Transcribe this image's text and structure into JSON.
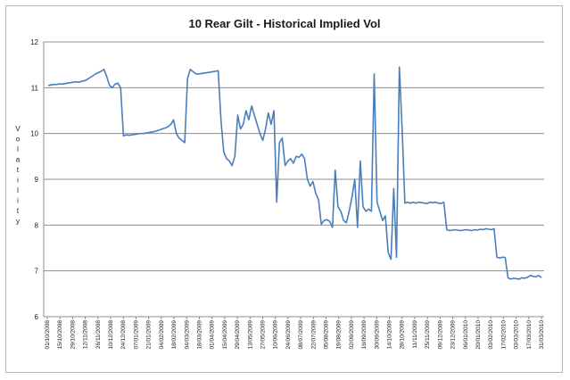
{
  "chart_data": {
    "type": "line",
    "title": "10 Rear Gilt - Historical Implied Vol",
    "xlabel": "",
    "ylabel": "Volatility",
    "ylim": [
      6,
      12
    ],
    "yticks": [
      6,
      7,
      8,
      9,
      10,
      11,
      12
    ],
    "grid": "horizontal",
    "legend": "none",
    "line_color": "#4a7ebb",
    "x_tick_labels": [
      "01/10/2008",
      "15/10/2008",
      "29/10/2008",
      "12/11/2008",
      "26/11/2008",
      "10/12/2008",
      "24/12/2008",
      "07/01/2009",
      "21/01/2009",
      "04/02/2009",
      "18/02/2009",
      "04/03/2009",
      "18/03/2009",
      "01/04/2009",
      "15/04/2009",
      "29/04/2009",
      "13/05/2009",
      "27/05/2009",
      "10/06/2009",
      "24/06/2009",
      "08/07/2009",
      "22/07/2009",
      "05/08/2009",
      "19/08/2009",
      "02/09/2009",
      "16/09/2009",
      "30/09/2009",
      "14/10/2009",
      "28/10/2009",
      "11/11/2009",
      "25/11/2009",
      "09/12/2009",
      "23/12/2009",
      "06/01/2010",
      "20/01/2010",
      "03/02/2010",
      "17/02/2010",
      "03/03/2010",
      "17/03/2010",
      "31/03/2010"
    ],
    "series": [
      {
        "values": [
          11.05,
          11.06,
          11.07,
          11.07,
          11.08,
          11.08,
          11.09,
          11.1,
          11.11,
          11.12,
          11.13,
          11.12,
          11.14,
          11.15,
          11.18,
          11.22,
          11.26,
          11.3,
          11.33,
          11.36,
          11.4,
          11.25,
          11.05,
          11.0,
          11.08,
          11.1,
          11.0,
          9.95,
          9.97,
          9.96,
          9.97,
          9.98,
          9.99,
          10.0,
          10.0,
          10.01,
          10.02,
          10.03,
          10.04,
          10.06,
          10.08,
          10.1,
          10.12,
          10.15,
          10.2,
          10.3,
          10.0,
          9.9,
          9.85,
          9.8,
          11.2,
          11.4,
          11.35,
          11.3,
          11.3,
          11.31,
          11.32,
          11.33,
          11.34,
          11.35,
          11.36,
          11.37,
          10.3,
          9.6,
          9.45,
          9.4,
          9.3,
          9.5,
          10.4,
          10.1,
          10.2,
          10.5,
          10.3,
          10.6,
          10.4,
          10.2,
          10.0,
          9.85,
          10.1,
          10.45,
          10.2,
          10.5,
          8.5,
          9.8,
          9.9,
          9.3,
          9.4,
          9.45,
          9.35,
          9.5,
          9.48,
          9.55,
          9.45,
          9.0,
          8.85,
          8.95,
          8.7,
          8.55,
          8.02,
          8.1,
          8.12,
          8.08,
          7.95,
          9.2,
          8.4,
          8.3,
          8.1,
          8.05,
          8.3,
          8.6,
          9.0,
          7.95,
          9.4,
          8.4,
          8.3,
          8.35,
          8.3,
          11.3,
          8.5,
          8.3,
          8.1,
          8.2,
          7.4,
          7.25,
          8.8,
          7.3,
          11.45,
          10.1,
          8.48,
          8.5,
          8.48,
          8.5,
          8.48,
          8.5,
          8.49,
          8.48,
          8.47,
          8.5,
          8.49,
          8.5,
          8.48,
          8.47,
          8.5,
          7.9,
          7.88,
          7.89,
          7.9,
          7.89,
          7.88,
          7.89,
          7.9,
          7.89,
          7.88,
          7.9,
          7.89,
          7.91,
          7.9,
          7.92,
          7.91,
          7.9,
          7.92,
          7.3,
          7.28,
          7.3,
          7.29,
          6.85,
          6.82,
          6.84,
          6.83,
          6.82,
          6.85,
          6.84,
          6.86,
          6.9,
          6.88,
          6.87,
          6.9,
          6.85
        ]
      }
    ]
  }
}
